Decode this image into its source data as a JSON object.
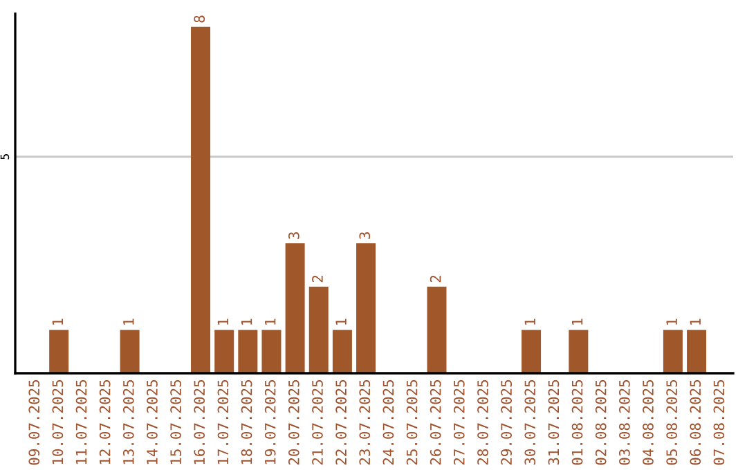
{
  "chart_data": {
    "type": "bar",
    "categories": [
      "09.07.2025",
      "10.07.2025",
      "11.07.2025",
      "12.07.2025",
      "13.07.2025",
      "14.07.2025",
      "15.07.2025",
      "16.07.2025",
      "17.07.2025",
      "18.07.2025",
      "19.07.2025",
      "20.07.2025",
      "21.07.2025",
      "22.07.2025",
      "23.07.2025",
      "24.07.2025",
      "25.07.2025",
      "26.07.2025",
      "27.07.2025",
      "28.07.2025",
      "29.07.2025",
      "30.07.2025",
      "31.07.2025",
      "01.08.2025",
      "02.08.2025",
      "03.08.2025",
      "04.08.2025",
      "05.08.2025",
      "06.08.2025",
      "07.08.2025"
    ],
    "values": [
      0,
      1,
      0,
      0,
      1,
      0,
      0,
      8,
      1,
      1,
      1,
      3,
      2,
      1,
      3,
      0,
      0,
      2,
      0,
      0,
      0,
      1,
      0,
      1,
      0,
      0,
      0,
      1,
      1,
      0
    ],
    "value_labels": [
      null,
      "1",
      null,
      null,
      "1",
      null,
      null,
      "8",
      "1",
      "1",
      "1",
      "3",
      "2",
      "1",
      "3",
      null,
      null,
      "2",
      null,
      null,
      null,
      "1",
      null,
      "1",
      null,
      null,
      null,
      "1",
      "1",
      null
    ],
    "color": "#a0572a",
    "ylim": [
      0,
      8.3
    ],
    "yticks": [
      5
    ],
    "grid": "y",
    "legend": false
  }
}
